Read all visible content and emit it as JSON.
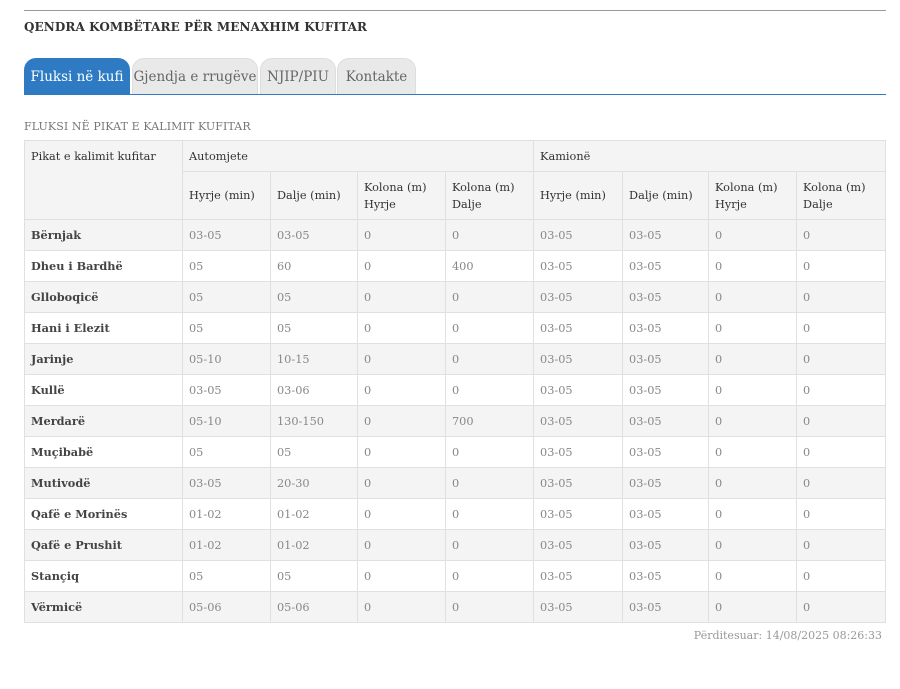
{
  "header": {
    "title": "QENDRA KOMBËTARE PËR MENAXHIM KUFITAR"
  },
  "tabs": [
    {
      "label": "Fluksi në kufi",
      "active": true
    },
    {
      "label": "Gjendja e rrugëve",
      "active": false
    },
    {
      "label": "NJIP/PIU",
      "active": false
    },
    {
      "label": "Kontakte",
      "active": false
    }
  ],
  "section": {
    "title": "FLUKSI NË PIKAT E KALIMIT KUFITAR"
  },
  "table": {
    "first_header": "Pikat e kalimit kufitar",
    "group_automjete": "Automjete",
    "group_kamione": "Kamionë",
    "sub_headers": [
      "Hyrje (min)",
      "Dalje (min)",
      "Kolona (m) Hyrje",
      "Kolona (m) Dalje",
      "Hyrje (min)",
      "Dalje (min)",
      "Kolona (m) Hyrje",
      "Kolona (m) Dalje"
    ],
    "rows": [
      [
        "Bërnjak",
        "03-05",
        "03-05",
        "0",
        "0",
        "03-05",
        "03-05",
        "0",
        "0"
      ],
      [
        "Dheu i Bardhë",
        "05",
        "60",
        "0",
        "400",
        "03-05",
        "03-05",
        "0",
        "0"
      ],
      [
        "Glloboqicë",
        "05",
        "05",
        "0",
        "0",
        "03-05",
        "03-05",
        "0",
        "0"
      ],
      [
        "Hani i Elezit",
        "05",
        "05",
        "0",
        "0",
        "03-05",
        "03-05",
        "0",
        "0"
      ],
      [
        "Jarinje",
        "05-10",
        "10-15",
        "0",
        "0",
        "03-05",
        "03-05",
        "0",
        "0"
      ],
      [
        "Kullë",
        "03-05",
        "03-06",
        "0",
        "0",
        "03-05",
        "03-05",
        "0",
        "0"
      ],
      [
        "Merdarë",
        "05-10",
        "130-150",
        "0",
        "700",
        "03-05",
        "03-05",
        "0",
        "0"
      ],
      [
        "Muçibabë",
        "05",
        "05",
        "0",
        "0",
        "03-05",
        "03-05",
        "0",
        "0"
      ],
      [
        "Mutivodë",
        "03-05",
        "20-30",
        "0",
        "0",
        "03-05",
        "03-05",
        "0",
        "0"
      ],
      [
        "Qafë e Morinës",
        "01-02",
        "01-02",
        "0",
        "0",
        "03-05",
        "03-05",
        "0",
        "0"
      ],
      [
        "Qafë e Prushit",
        "01-02",
        "01-02",
        "0",
        "0",
        "03-05",
        "03-05",
        "0",
        "0"
      ],
      [
        "Stançiq",
        "05",
        "05",
        "0",
        "0",
        "03-05",
        "03-05",
        "0",
        "0"
      ],
      [
        "Vërmicë",
        "05-06",
        "05-06",
        "0",
        "0",
        "03-05",
        "03-05",
        "0",
        "0"
      ]
    ]
  },
  "footer": {
    "updated": "Përditesuar: 14/08/2025 08:26:33"
  },
  "colors": {
    "accent": "#2e7bc4",
    "stripe": "#f4f4f4"
  }
}
